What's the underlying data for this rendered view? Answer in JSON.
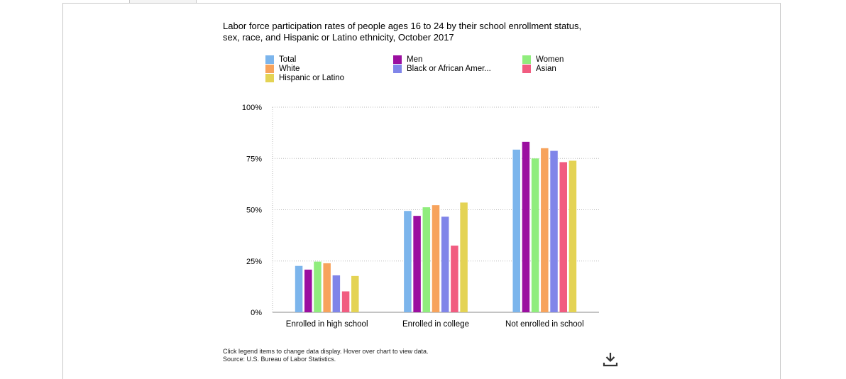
{
  "chart_data": {
    "type": "bar",
    "title": "Labor force participation rates of people ages 16 to 24 by their school enrollment status, sex, race, and Hispanic or Latino ethnicity, October 2017",
    "categories": [
      "Enrolled in high school",
      "Enrolled in college",
      "Not enrolled in school"
    ],
    "series": [
      {
        "name": "Total",
        "color": "#7cb5ec",
        "values": [
          22.6,
          49.4,
          79.3
        ]
      },
      {
        "name": "Men",
        "color": "#9b0fa0",
        "values": [
          20.8,
          47.0,
          83.1
        ]
      },
      {
        "name": "Women",
        "color": "#90ed7d",
        "values": [
          24.7,
          51.2,
          75.0
        ]
      },
      {
        "name": "White",
        "color": "#f7a35c",
        "values": [
          23.9,
          52.2,
          80.0
        ]
      },
      {
        "name": "Black or African Amer...",
        "color": "#8085e9",
        "values": [
          18.0,
          46.6,
          78.7
        ]
      },
      {
        "name": "Asian",
        "color": "#f15c80",
        "values": [
          10.2,
          32.5,
          73.2
        ]
      },
      {
        "name": "Hispanic or Latino",
        "color": "#e4d354",
        "values": [
          17.7,
          53.5,
          73.9
        ]
      }
    ],
    "yticks": [
      "0%",
      "25%",
      "50%",
      "75%",
      "100%"
    ],
    "ylim": [
      0,
      100
    ],
    "grid": true,
    "legend_position": "top"
  },
  "footnote": {
    "line1": "Click legend items to change data display. Hover over chart to view data.",
    "line2": "Source: U.S. Bureau of Labor Statistics."
  },
  "icons": {
    "download": "download-icon"
  }
}
